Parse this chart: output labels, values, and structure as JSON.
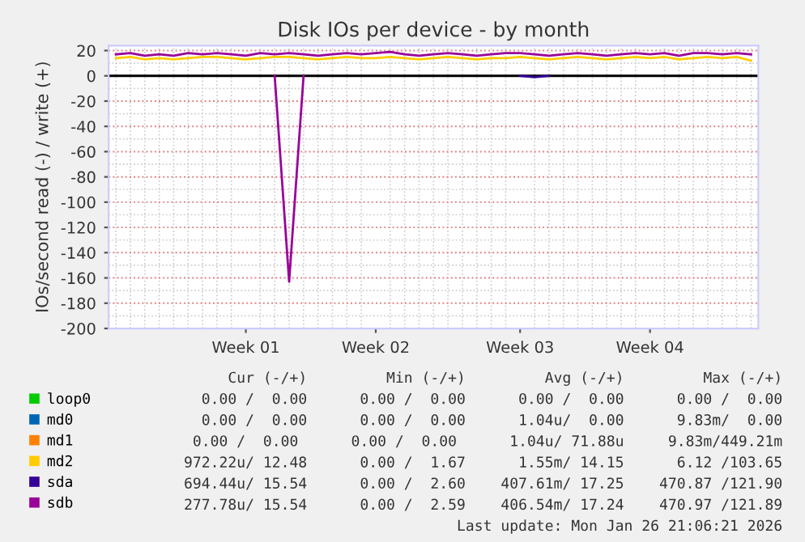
{
  "chart_data": {
    "type": "line",
    "title": "Disk IOs per device - by month",
    "ylabel": "IOs/second read (-) / write (+)",
    "categories": [
      null,
      null,
      null,
      null,
      null,
      null,
      null,
      null,
      null,
      "Week 01",
      null,
      null,
      null,
      null,
      null,
      null,
      null,
      null,
      "Week 02",
      null,
      null,
      null,
      null,
      null,
      null,
      null,
      null,
      null,
      "Week 03",
      null,
      null,
      null,
      null,
      null,
      null,
      null,
      null,
      "Week 04",
      null,
      null,
      null,
      null,
      null,
      null,
      null
    ],
    "series": [
      {
        "name": "loop0",
        "color": "#00cc00",
        "values": [
          null,
          null,
          null,
          null,
          null,
          null,
          null,
          null,
          null,
          null,
          null,
          null,
          null,
          null,
          null,
          null,
          null,
          null,
          null,
          null,
          null,
          null,
          null,
          null,
          null,
          null,
          null,
          null,
          null,
          null,
          null,
          null,
          null,
          null,
          null,
          null,
          null,
          null,
          null,
          null,
          null,
          null,
          null,
          null,
          null
        ]
      },
      {
        "name": "md0",
        "color": "#0066b3",
        "values": [
          null,
          null,
          null,
          null,
          null,
          null,
          null,
          null,
          null,
          null,
          null,
          null,
          null,
          null,
          null,
          null,
          null,
          null,
          null,
          null,
          null,
          null,
          null,
          null,
          null,
          null,
          null,
          null,
          null,
          null,
          null,
          null,
          null,
          null,
          null,
          null,
          null,
          null,
          null,
          null,
          null,
          null,
          null,
          null,
          null
        ]
      },
      {
        "name": "md1",
        "color": "#ff8000",
        "values": [
          null,
          null,
          null,
          null,
          null,
          null,
          null,
          null,
          null,
          null,
          null,
          null,
          null,
          null,
          null,
          null,
          null,
          null,
          null,
          null,
          null,
          null,
          null,
          null,
          null,
          null,
          null,
          null,
          null,
          null,
          null,
          null,
          null,
          null,
          null,
          null,
          null,
          null,
          null,
          null,
          null,
          null,
          null,
          null,
          null
        ]
      },
      {
        "name": "md2",
        "color": "#ffcc00",
        "values": [
          14,
          15,
          13,
          14,
          13,
          14,
          15,
          15,
          14,
          13,
          14,
          15,
          15,
          14,
          13,
          14,
          15,
          14,
          14,
          15,
          14,
          13,
          14,
          15,
          14,
          13,
          14,
          14,
          15,
          14,
          13,
          14,
          15,
          14,
          13,
          14,
          15,
          14,
          15,
          13,
          14,
          15,
          14,
          15,
          12
        ]
      },
      {
        "name": "sda",
        "color": "#330099",
        "values": [
          null,
          null,
          null,
          null,
          null,
          null,
          null,
          null,
          null,
          null,
          null,
          null,
          null,
          null,
          null,
          null,
          null,
          null,
          null,
          null,
          null,
          null,
          null,
          null,
          null,
          null,
          null,
          null,
          0,
          -1,
          0,
          null,
          null,
          null,
          null,
          null,
          null,
          null,
          null,
          null,
          null,
          null,
          null,
          null,
          null
        ]
      },
      {
        "name": "sdb",
        "color": "#990099",
        "values": [
          17,
          18,
          16,
          17,
          16,
          18,
          17,
          18,
          17,
          16,
          18,
          17,
          18,
          17,
          16,
          17,
          18,
          17,
          18,
          19,
          17,
          16,
          17,
          18,
          17,
          16,
          17,
          18,
          18,
          17,
          16,
          17,
          18,
          17,
          16,
          17,
          18,
          17,
          18,
          16,
          18,
          18,
          17,
          18,
          17
        ]
      },
      {
        "color": "#990099",
        "values": [
          null,
          null,
          null,
          null,
          null,
          null,
          null,
          null,
          null,
          null,
          null,
          0,
          -163,
          0,
          null,
          null,
          null,
          null,
          null,
          null,
          null,
          null,
          null,
          null,
          null,
          null,
          null,
          null,
          null,
          null,
          null,
          null,
          null,
          null,
          null,
          null,
          null,
          null,
          null,
          null,
          null,
          null,
          null,
          null,
          null
        ]
      }
    ],
    "ylim": [
      -200,
      24
    ],
    "yticks": [
      20,
      0,
      -20,
      -40,
      -60,
      -80,
      -100,
      -120,
      -140,
      -160,
      -180,
      -200
    ],
    "ref_lines": [
      {
        "axis": "y",
        "value": 0,
        "color": "#000000"
      }
    ],
    "grid": true,
    "legend": "bottom",
    "annotations": [
      "     Cur (-/+)         Min (-/+)         Avg (-/+)         Max (-/+)",
      "  0.00 /  0.00      0.00 /  0.00      0.00 /  0.00      0.00 /  0.00",
      "  0.00 /  0.00      0.00 /  0.00      1.04u/  0.00      9.83m/  0.00",
      "  0.00 /  0.00      0.00 /  0.00      1.04u/ 71.88u     9.83m/449.21m",
      "972.22u/ 12.48      0.00 /  1.67      1.55m/ 14.15      6.12 /103.65",
      "694.44u/ 15.54      0.00 /  2.60    407.61m/ 17.25    470.87 /121.90",
      "277.78u/ 15.54      0.00 /  2.59    406.54m/ 17.24    470.97 /121.89",
      "Last update: Mon Jan 26 21:06:21 2026"
    ]
  }
}
